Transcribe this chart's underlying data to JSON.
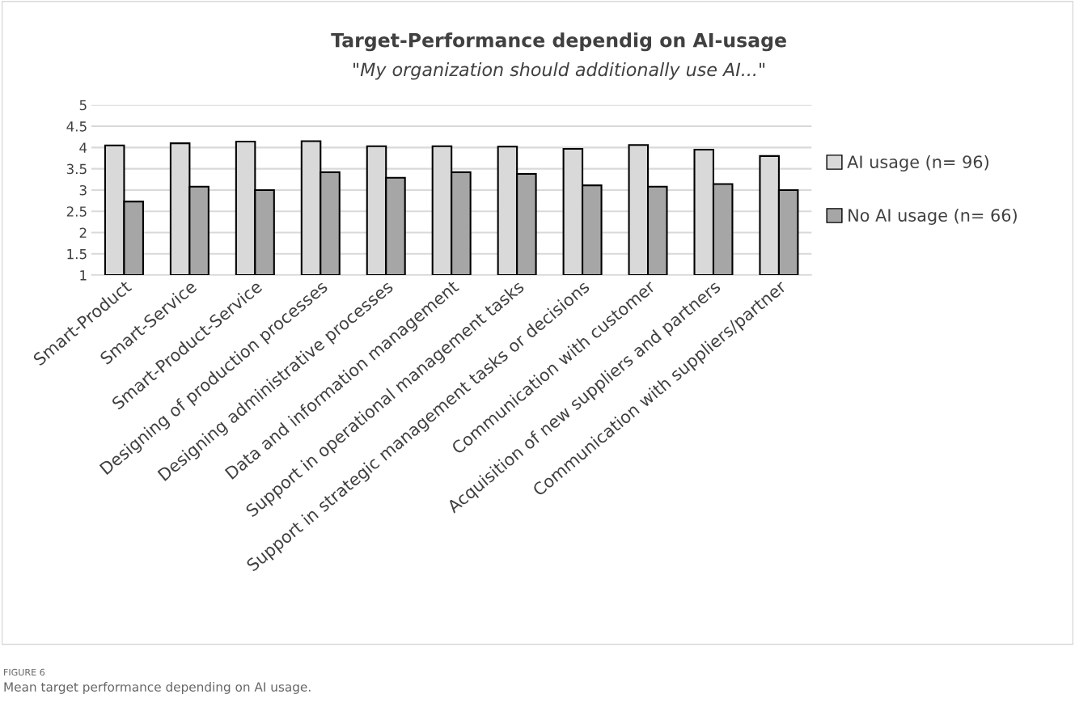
{
  "chart_data": {
    "type": "bar",
    "title": "Target-Performance dependig on AI-usage",
    "subtitle": "\"My organization should additionally use AI...\"",
    "categories": [
      "Smart-Product",
      "Smart-Service",
      "Smart-Product-Service",
      "Designing of production processes",
      "Designing administrative processes",
      "Data and information management",
      "Support in operational management tasks",
      "Support in strategic management tasks or decisions",
      "Communication with customer",
      "Acquisition of new suppliers and partners",
      "Communication with suppliers/partner"
    ],
    "series": [
      {
        "name": "AI usage (n= 96)",
        "color": "#d9d9d9",
        "values": [
          4.05,
          4.1,
          4.14,
          4.15,
          4.03,
          4.03,
          4.02,
          3.97,
          4.06,
          3.95,
          3.8
        ]
      },
      {
        "name": "No AI usage (n= 66)",
        "color": "#a6a6a6",
        "values": [
          2.73,
          3.08,
          3.0,
          3.42,
          3.29,
          3.42,
          3.38,
          3.11,
          3.08,
          3.14,
          3.0
        ]
      }
    ],
    "ylim": [
      1,
      5
    ],
    "yticks": [
      1,
      1.5,
      2,
      2.5,
      3,
      3.5,
      4,
      4.5,
      5
    ],
    "grid": "y",
    "legend": "right",
    "annotations": [
      "FIGURE 6",
      "Mean target performance depending on AI usage."
    ]
  }
}
